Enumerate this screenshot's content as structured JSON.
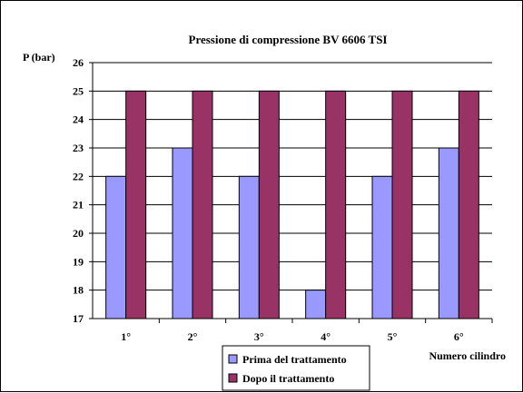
{
  "chart_data": {
    "type": "bar",
    "title": "Pressione di compressione BV 6606 TSI",
    "ylabel": "P (bar)",
    "xlabel": "Numero cilindro",
    "categories": [
      "1°",
      "2°",
      "3°",
      "4°",
      "5°",
      "6°"
    ],
    "ylim": [
      17,
      26
    ],
    "yticks": [
      17,
      18,
      19,
      20,
      21,
      22,
      23,
      24,
      25,
      26
    ],
    "grid": true,
    "legend_position": "bottom-center",
    "series": [
      {
        "name": "Prima del trattamento",
        "values": [
          22,
          23,
          22,
          18,
          22,
          23
        ],
        "color": "#9999FF"
      },
      {
        "name": "Dopo il trattamento",
        "values": [
          25,
          25,
          25,
          25,
          25,
          25
        ],
        "color": "#993366"
      }
    ]
  }
}
